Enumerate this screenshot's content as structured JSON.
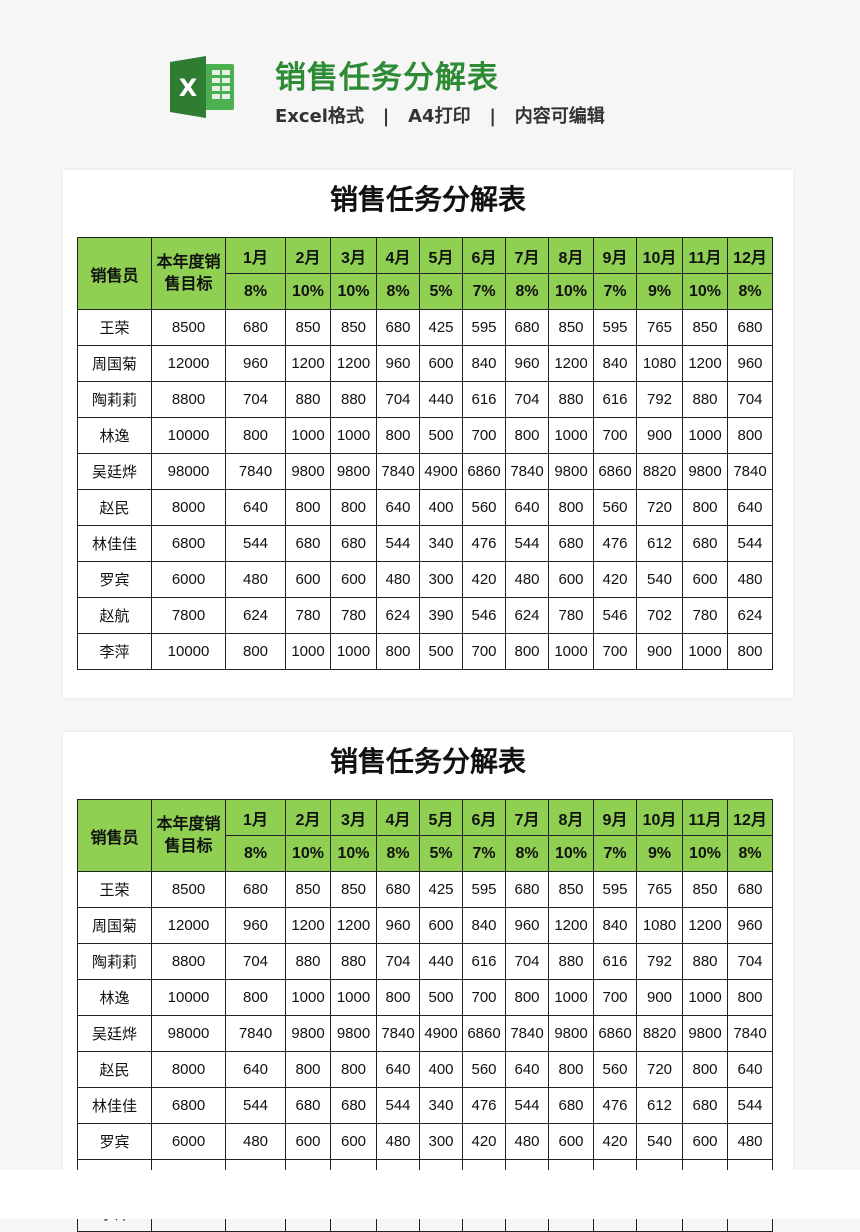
{
  "header": {
    "title": "销售任务分解表",
    "subtitle": "Excel格式   |   A4打印   |   内容可编辑",
    "logo_icon": "excel-icon",
    "accent": "#2e8b35"
  },
  "sheet": {
    "title": "销售任务分解表",
    "col_salesperson": "销售员",
    "col_target": "本年度销售目标",
    "header_color": "#8fd053",
    "months": [
      "1月",
      "2月",
      "3月",
      "4月",
      "5月",
      "6月",
      "7月",
      "8月",
      "9月",
      "10月",
      "11月",
      "12月"
    ],
    "percents": [
      "8%",
      "10%",
      "10%",
      "8%",
      "5%",
      "7%",
      "8%",
      "10%",
      "7%",
      "9%",
      "10%",
      "8%"
    ],
    "rows": [
      {
        "name": "王荣",
        "target": "8500",
        "values": [
          "680",
          "850",
          "850",
          "680",
          "425",
          "595",
          "680",
          "850",
          "595",
          "765",
          "850",
          "680"
        ]
      },
      {
        "name": "周国菊",
        "target": "12000",
        "values": [
          "960",
          "1200",
          "1200",
          "960",
          "600",
          "840",
          "960",
          "1200",
          "840",
          "1080",
          "1200",
          "960"
        ]
      },
      {
        "name": "陶莉莉",
        "target": "8800",
        "values": [
          "704",
          "880",
          "880",
          "704",
          "440",
          "616",
          "704",
          "880",
          "616",
          "792",
          "880",
          "704"
        ]
      },
      {
        "name": "林逸",
        "target": "10000",
        "values": [
          "800",
          "1000",
          "1000",
          "800",
          "500",
          "700",
          "800",
          "1000",
          "700",
          "900",
          "1000",
          "800"
        ]
      },
      {
        "name": "吴廷烨",
        "target": "98000",
        "values": [
          "7840",
          "9800",
          "9800",
          "7840",
          "4900",
          "6860",
          "7840",
          "9800",
          "6860",
          "8820",
          "9800",
          "7840"
        ]
      },
      {
        "name": "赵民",
        "target": "8000",
        "values": [
          "640",
          "800",
          "800",
          "640",
          "400",
          "560",
          "640",
          "800",
          "560",
          "720",
          "800",
          "640"
        ]
      },
      {
        "name": "林佳佳",
        "target": "6800",
        "values": [
          "544",
          "680",
          "680",
          "544",
          "340",
          "476",
          "544",
          "680",
          "476",
          "612",
          "680",
          "544"
        ]
      },
      {
        "name": "罗宾",
        "target": "6000",
        "values": [
          "480",
          "600",
          "600",
          "480",
          "300",
          "420",
          "480",
          "600",
          "420",
          "540",
          "600",
          "480"
        ]
      },
      {
        "name": "赵航",
        "target": "7800",
        "values": [
          "624",
          "780",
          "780",
          "624",
          "390",
          "546",
          "624",
          "780",
          "546",
          "702",
          "780",
          "624"
        ]
      },
      {
        "name": "李萍",
        "target": "10000",
        "values": [
          "800",
          "1000",
          "1000",
          "800",
          "500",
          "700",
          "800",
          "1000",
          "700",
          "900",
          "1000",
          "800"
        ]
      }
    ]
  }
}
